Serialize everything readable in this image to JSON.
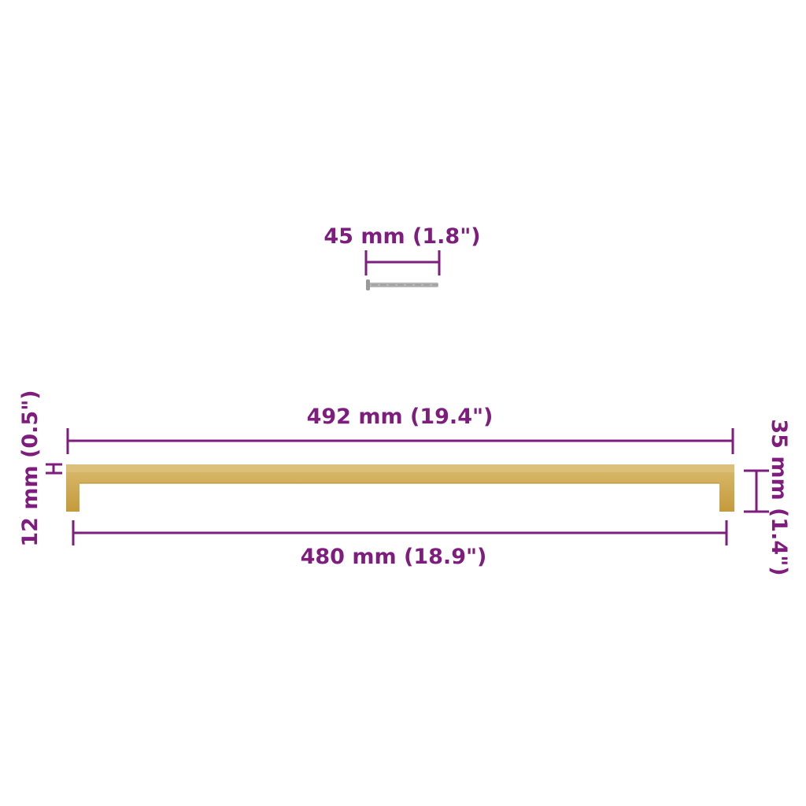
{
  "colors": {
    "dimension": "#7f1d7f",
    "handle": "#c9a24a",
    "handle_highlight": "#dcc07a",
    "screw": "#9a9a9a"
  },
  "dimensions": {
    "screw_length": "45 mm (1.8\")",
    "overall_length": "492 mm (19.4\")",
    "hole_spacing": "480 mm (18.9\")",
    "bar_thickness": "12 mm (0.5\")",
    "height": "35 mm (1.4\")"
  }
}
